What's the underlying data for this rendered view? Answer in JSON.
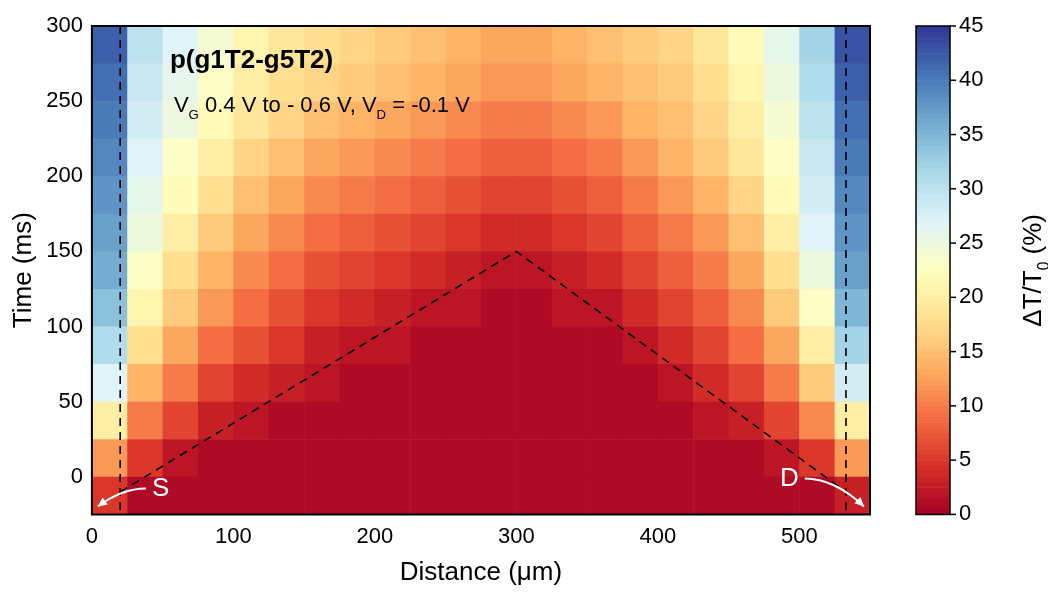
{
  "chart_data": {
    "type": "heatmap",
    "title": "p(g1T2-g5T2)",
    "subtitle": "V$_{G}$ 0.4 V to - 0.6 V, V$_{D}$ = -0.1 V",
    "xlabel": "Distance (μm)",
    "ylabel": "Time (ms)",
    "clabel": "ΔT/T$_{0}$ (%)",
    "x": [
      12.5,
      37.5,
      62.5,
      87.5,
      112.5,
      137.5,
      162.5,
      187.5,
      212.5,
      237.5,
      262.5,
      287.5,
      312.5,
      337.5,
      362.5,
      387.5,
      412.5,
      437.5,
      462.5,
      487.5,
      512.5,
      537.5
    ],
    "xlim": [
      0,
      550
    ],
    "xticks": [
      0,
      100,
      200,
      300,
      400,
      500
    ],
    "ylim": [
      -25,
      300
    ],
    "yticks": [
      0,
      50,
      100,
      150,
      200,
      250,
      300
    ],
    "clim": [
      0,
      45
    ],
    "cticks": [
      0,
      5,
      10,
      15,
      20,
      25,
      30,
      35,
      40,
      45
    ],
    "grid": false,
    "legend": false,
    "cells": [
      [
        42,
        30,
        27,
        24,
        21,
        19,
        18,
        17,
        16,
        15,
        14,
        13,
        13,
        14,
        15,
        16,
        17,
        19,
        22,
        26,
        32,
        43
      ],
      [
        41,
        29,
        26,
        23,
        20,
        18,
        17,
        16,
        15,
        14,
        13,
        12,
        12,
        13,
        14,
        15,
        16,
        18,
        21,
        25,
        31,
        42
      ],
      [
        40,
        28,
        25,
        22,
        19,
        17,
        15,
        14,
        13,
        12,
        11,
        10,
        10,
        11,
        12,
        14,
        15,
        17,
        20,
        24,
        30,
        41
      ],
      [
        39,
        27,
        23,
        20,
        17,
        15,
        13,
        12,
        11,
        10,
        9,
        8,
        8,
        9,
        10,
        12,
        14,
        16,
        19,
        23,
        29,
        40
      ],
      [
        38,
        26,
        22,
        18,
        15,
        13,
        11,
        10,
        9,
        8,
        7,
        6,
        6,
        7,
        8,
        10,
        12,
        14,
        17,
        22,
        28,
        39
      ],
      [
        37,
        25,
        20,
        16,
        13,
        11,
        9,
        8,
        7,
        6,
        5,
        4,
        4,
        5,
        6,
        8,
        10,
        12,
        15,
        20,
        27,
        38
      ],
      [
        36,
        23,
        18,
        14,
        11,
        9,
        7,
        6,
        5,
        4,
        3,
        2,
        2,
        3,
        4,
        6,
        8,
        10,
        13,
        18,
        25,
        37
      ],
      [
        34,
        21,
        16,
        12,
        9,
        7,
        5,
        4,
        3,
        2,
        2,
        1,
        1,
        2,
        2,
        4,
        6,
        8,
        11,
        16,
        23,
        35
      ],
      [
        31,
        18,
        13,
        9,
        7,
        5,
        3,
        2,
        2,
        1,
        1,
        1,
        1,
        1,
        1,
        2,
        4,
        6,
        9,
        13,
        20,
        32
      ],
      [
        27,
        14,
        10,
        6,
        4,
        3,
        2,
        1,
        1,
        1,
        1,
        1,
        1,
        1,
        1,
        1,
        2,
        4,
        6,
        10,
        16,
        28
      ],
      [
        20,
        10,
        6,
        3,
        2,
        1,
        1,
        1,
        1,
        1,
        1,
        1,
        1,
        1,
        1,
        1,
        1,
        2,
        3,
        6,
        11,
        20
      ],
      [
        12,
        5,
        2,
        1,
        1,
        1,
        1,
        1,
        1,
        1,
        1,
        1,
        1,
        1,
        1,
        1,
        1,
        1,
        1,
        2,
        5,
        12
      ],
      [
        5,
        1,
        1,
        1,
        1,
        1,
        1,
        1,
        1,
        1,
        1,
        1,
        1,
        1,
        1,
        1,
        1,
        1,
        1,
        1,
        1,
        3
      ]
    ],
    "series": [
      {
        "type": "line",
        "x": [
          20,
          300,
          533
        ],
        "values": [
          -10,
          150,
          -10
        ],
        "color": "#000000",
        "line_style": "dashed",
        "marker": "none"
      }
    ],
    "ref_lines": [
      {
        "axis": "x",
        "value": 20,
        "color": "#000000",
        "line_style": "dashed"
      },
      {
        "axis": "x",
        "value": 533,
        "color": "#000000",
        "line_style": "dashed"
      }
    ],
    "annotations": [
      "S",
      "D"
    ]
  }
}
